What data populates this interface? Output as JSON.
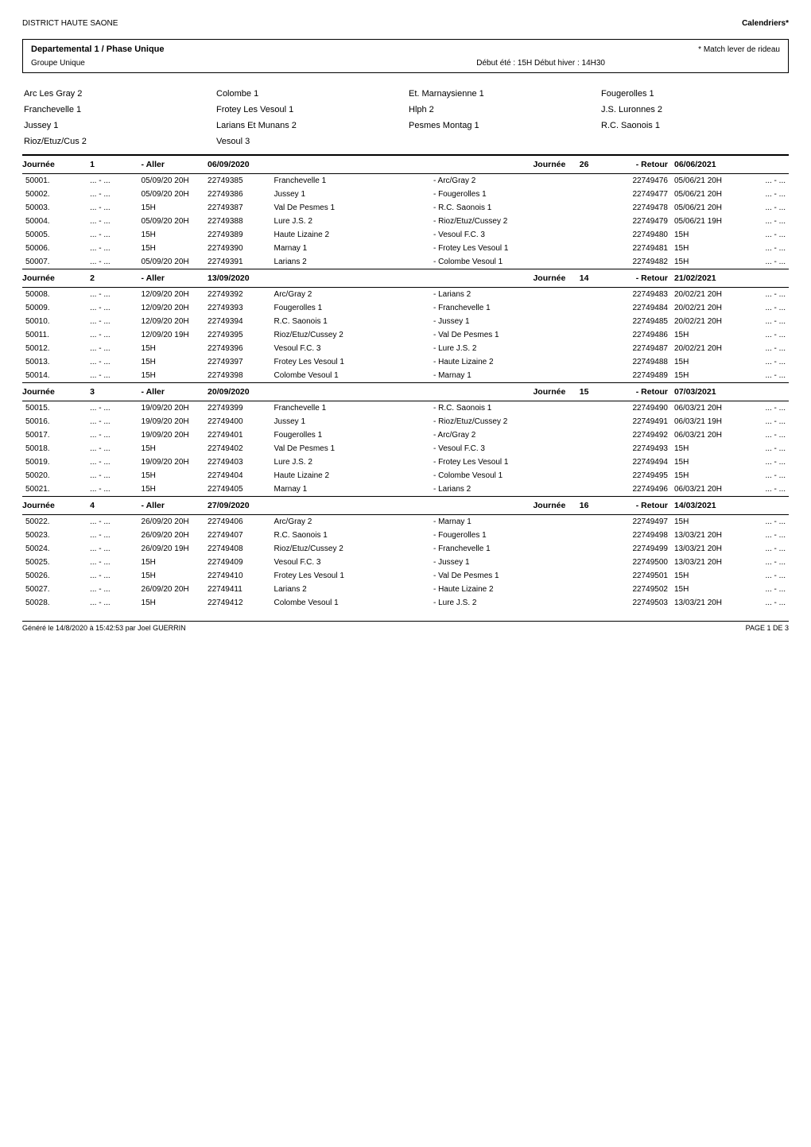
{
  "header": {
    "left": "DISTRICT HAUTE SAONE",
    "right": "Calendriers*"
  },
  "titlebox": {
    "main": "Departemental 1 / Phase Unique",
    "note": "* Match lever de rideau",
    "group": "Groupe Unique",
    "times": "Début été : 15H Début hiver : 14H30"
  },
  "teams": [
    [
      "Arc Les Gray 2",
      "Colombe 1",
      "Et. Marnaysienne 1",
      "Fougerolles 1"
    ],
    [
      "Franchevelle 1",
      "Frotey Les Vesoul 1",
      "Hlph 2",
      "J.S. Luronnes 2"
    ],
    [
      "Jussey 1",
      "Larians Et Munans 2",
      "Pesmes Montag 1",
      "R.C. Saonois 1"
    ],
    [
      "Rioz/Etuz/Cus 2",
      "Vesoul 3",
      "",
      ""
    ]
  ],
  "journees": [
    {
      "num": "1",
      "aller_label": "- Aller",
      "aller_date": "06/09/2020",
      "ret_num": "26",
      "retour_label": "- Retour",
      "retour_date": "06/06/2021",
      "matches": [
        {
          "n": "50001.",
          "s1": "... - ...",
          "dt1": "05/09/20 20H",
          "id1": "22749385",
          "home": "Franchevelle 1",
          "away": "- Arc/Gray 2",
          "id2": "22749476",
          "dt2": "05/06/21 20H",
          "s2": "... - ..."
        },
        {
          "n": "50002.",
          "s1": "... - ...",
          "dt1": "05/09/20 20H",
          "id1": "22749386",
          "home": "Jussey 1",
          "away": "- Fougerolles 1",
          "id2": "22749477",
          "dt2": "05/06/21 20H",
          "s2": "... - ..."
        },
        {
          "n": "50003.",
          "s1": "... - ...",
          "dt1": "15H",
          "id1": "22749387",
          "home": "Val De Pesmes 1",
          "away": "- R.C. Saonois 1",
          "id2": "22749478",
          "dt2": "05/06/21 20H",
          "s2": "... - ..."
        },
        {
          "n": "50004.",
          "s1": "... - ...",
          "dt1": "05/09/20 20H",
          "id1": "22749388",
          "home": "Lure J.S. 2",
          "away": "- Rioz/Etuz/Cussey 2",
          "id2": "22749479",
          "dt2": "05/06/21 19H",
          "s2": "... - ..."
        },
        {
          "n": "50005.",
          "s1": "... - ...",
          "dt1": "15H",
          "id1": "22749389",
          "home": "Haute Lizaine 2",
          "away": "- Vesoul F.C. 3",
          "id2": "22749480",
          "dt2": "15H",
          "s2": "... - ..."
        },
        {
          "n": "50006.",
          "s1": "... - ...",
          "dt1": "15H",
          "id1": "22749390",
          "home": "Marnay 1",
          "away": "- Frotey Les Vesoul 1",
          "id2": "22749481",
          "dt2": "15H",
          "s2": "... - ..."
        },
        {
          "n": "50007.",
          "s1": "... - ...",
          "dt1": "05/09/20 20H",
          "id1": "22749391",
          "home": "Larians 2",
          "away": "- Colombe Vesoul 1",
          "id2": "22749482",
          "dt2": "15H",
          "s2": "... - ..."
        }
      ]
    },
    {
      "num": "2",
      "aller_label": "- Aller",
      "aller_date": "13/09/2020",
      "ret_num": "14",
      "retour_label": "- Retour",
      "retour_date": "21/02/2021",
      "matches": [
        {
          "n": "50008.",
          "s1": "... - ...",
          "dt1": "12/09/20 20H",
          "id1": "22749392",
          "home": "Arc/Gray 2",
          "away": "- Larians 2",
          "id2": "22749483",
          "dt2": "20/02/21 20H",
          "s2": "... - ..."
        },
        {
          "n": "50009.",
          "s1": "... - ...",
          "dt1": "12/09/20 20H",
          "id1": "22749393",
          "home": "Fougerolles 1",
          "away": "- Franchevelle 1",
          "id2": "22749484",
          "dt2": "20/02/21 20H",
          "s2": "... - ..."
        },
        {
          "n": "50010.",
          "s1": "... - ...",
          "dt1": "12/09/20 20H",
          "id1": "22749394",
          "home": "R.C. Saonois 1",
          "away": "- Jussey 1",
          "id2": "22749485",
          "dt2": "20/02/21 20H",
          "s2": "... - ..."
        },
        {
          "n": "50011.",
          "s1": "... - ...",
          "dt1": "12/09/20 19H",
          "id1": "22749395",
          "home": "Rioz/Etuz/Cussey 2",
          "away": "- Val De Pesmes 1",
          "id2": "22749486",
          "dt2": "15H",
          "s2": "... - ..."
        },
        {
          "n": "50012.",
          "s1": "... - ...",
          "dt1": "15H",
          "id1": "22749396",
          "home": "Vesoul F.C. 3",
          "away": "- Lure J.S. 2",
          "id2": "22749487",
          "dt2": "20/02/21 20H",
          "s2": "... - ..."
        },
        {
          "n": "50013.",
          "s1": "... - ...",
          "dt1": "15H",
          "id1": "22749397",
          "home": "Frotey Les Vesoul 1",
          "away": "- Haute Lizaine 2",
          "id2": "22749488",
          "dt2": "15H",
          "s2": "... - ..."
        },
        {
          "n": "50014.",
          "s1": "... - ...",
          "dt1": "15H",
          "id1": "22749398",
          "home": "Colombe Vesoul 1",
          "away": "- Marnay 1",
          "id2": "22749489",
          "dt2": "15H",
          "s2": "... - ..."
        }
      ]
    },
    {
      "num": "3",
      "aller_label": "- Aller",
      "aller_date": "20/09/2020",
      "ret_num": "15",
      "retour_label": "- Retour",
      "retour_date": "07/03/2021",
      "matches": [
        {
          "n": "50015.",
          "s1": "... - ...",
          "dt1": "19/09/20 20H",
          "id1": "22749399",
          "home": "Franchevelle 1",
          "away": "- R.C. Saonois 1",
          "id2": "22749490",
          "dt2": "06/03/21 20H",
          "s2": "... - ..."
        },
        {
          "n": "50016.",
          "s1": "... - ...",
          "dt1": "19/09/20 20H",
          "id1": "22749400",
          "home": "Jussey 1",
          "away": "- Rioz/Etuz/Cussey 2",
          "id2": "22749491",
          "dt2": "06/03/21 19H",
          "s2": "... - ..."
        },
        {
          "n": "50017.",
          "s1": "... - ...",
          "dt1": "19/09/20 20H",
          "id1": "22749401",
          "home": "Fougerolles 1",
          "away": "- Arc/Gray 2",
          "id2": "22749492",
          "dt2": "06/03/21 20H",
          "s2": "... - ..."
        },
        {
          "n": "50018.",
          "s1": "... - ...",
          "dt1": "15H",
          "id1": "22749402",
          "home": "Val De Pesmes 1",
          "away": "- Vesoul F.C. 3",
          "id2": "22749493",
          "dt2": "15H",
          "s2": "... - ..."
        },
        {
          "n": "50019.",
          "s1": "... - ...",
          "dt1": "19/09/20 20H",
          "id1": "22749403",
          "home": "Lure J.S. 2",
          "away": "- Frotey Les Vesoul 1",
          "id2": "22749494",
          "dt2": "15H",
          "s2": "... - ..."
        },
        {
          "n": "50020.",
          "s1": "... - ...",
          "dt1": "15H",
          "id1": "22749404",
          "home": "Haute Lizaine 2",
          "away": "- Colombe Vesoul 1",
          "id2": "22749495",
          "dt2": "15H",
          "s2": "... - ..."
        },
        {
          "n": "50021.",
          "s1": "... - ...",
          "dt1": "15H",
          "id1": "22749405",
          "home": "Marnay 1",
          "away": "- Larians 2",
          "id2": "22749496",
          "dt2": "06/03/21 20H",
          "s2": "... - ..."
        }
      ]
    },
    {
      "num": "4",
      "aller_label": "- Aller",
      "aller_date": "27/09/2020",
      "ret_num": "16",
      "retour_label": "- Retour",
      "retour_date": "14/03/2021",
      "matches": [
        {
          "n": "50022.",
          "s1": "... - ...",
          "dt1": "26/09/20 20H",
          "id1": "22749406",
          "home": "Arc/Gray 2",
          "away": "- Marnay 1",
          "id2": "22749497",
          "dt2": "15H",
          "s2": "... - ..."
        },
        {
          "n": "50023.",
          "s1": "... - ...",
          "dt1": "26/09/20 20H",
          "id1": "22749407",
          "home": "R.C. Saonois 1",
          "away": "- Fougerolles 1",
          "id2": "22749498",
          "dt2": "13/03/21 20H",
          "s2": "... - ..."
        },
        {
          "n": "50024.",
          "s1": "... - ...",
          "dt1": "26/09/20 19H",
          "id1": "22749408",
          "home": "Rioz/Etuz/Cussey 2",
          "away": "- Franchevelle 1",
          "id2": "22749499",
          "dt2": "13/03/21 20H",
          "s2": "... - ..."
        },
        {
          "n": "50025.",
          "s1": "... - ...",
          "dt1": "15H",
          "id1": "22749409",
          "home": "Vesoul F.C. 3",
          "away": "- Jussey 1",
          "id2": "22749500",
          "dt2": "13/03/21 20H",
          "s2": "... - ..."
        },
        {
          "n": "50026.",
          "s1": "... - ...",
          "dt1": "15H",
          "id1": "22749410",
          "home": "Frotey Les Vesoul 1",
          "away": "- Val De Pesmes 1",
          "id2": "22749501",
          "dt2": "15H",
          "s2": "... - ..."
        },
        {
          "n": "50027.",
          "s1": "... - ...",
          "dt1": "26/09/20 20H",
          "id1": "22749411",
          "home": "Larians 2",
          "away": "- Haute Lizaine 2",
          "id2": "22749502",
          "dt2": "15H",
          "s2": "... - ..."
        },
        {
          "n": "50028.",
          "s1": "... - ...",
          "dt1": "15H",
          "id1": "22749412",
          "home": "Colombe Vesoul 1",
          "away": "- Lure J.S. 2",
          "id2": "22749503",
          "dt2": "13/03/21 20H",
          "s2": "... - ..."
        }
      ]
    }
  ],
  "footer": {
    "left": "Généré le 14/8/2020 à 15:42:53 par Joel GUERRIN",
    "right": "PAGE 1 DE 3"
  },
  "labels": {
    "journee": "Journée"
  }
}
